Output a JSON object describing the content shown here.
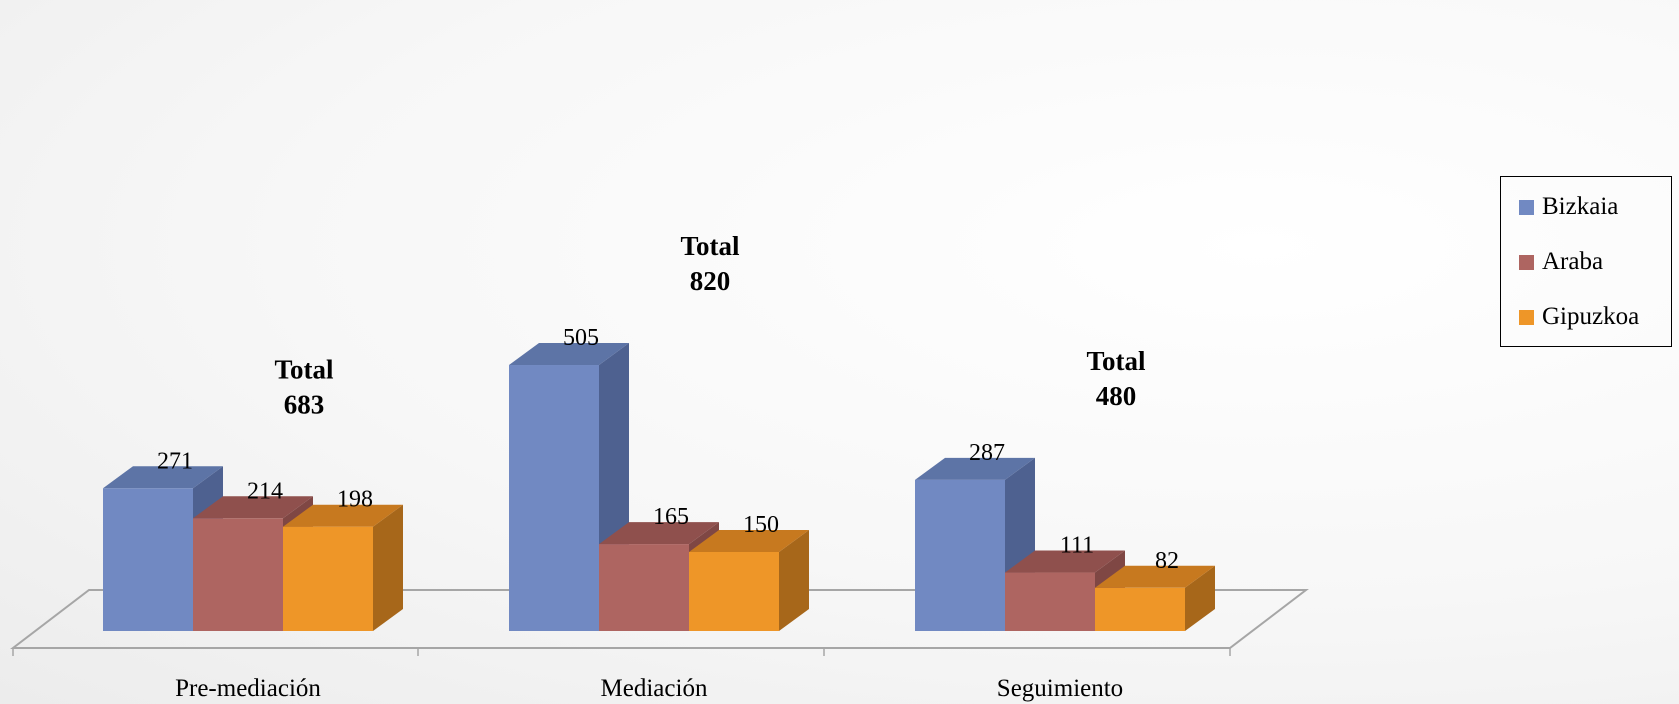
{
  "chart_data": {
    "type": "bar",
    "categories": [
      "Pre-mediación",
      "Mediación",
      "Seguimiento"
    ],
    "series": [
      {
        "name": "Bizkaia",
        "values": [
          271,
          505,
          287
        ],
        "color": "#7189C2",
        "side_color": "#4E6190",
        "top_color": "#5D74A6"
      },
      {
        "name": "Araba",
        "values": [
          214,
          165,
          111
        ],
        "color": "#AE6561",
        "side_color": "#7F4744",
        "top_color": "#8F504D"
      },
      {
        "name": "Gipuzkoa",
        "values": [
          198,
          150,
          82
        ],
        "color": "#EE9628",
        "side_color": "#A7671A",
        "top_color": "#C7791F"
      }
    ],
    "totals": [
      {
        "label": "Total",
        "value": "683"
      },
      {
        "label": "Total",
        "value": "820"
      },
      {
        "label": "Total",
        "value": "480"
      }
    ],
    "ylim": [
      0,
      505
    ],
    "three_d": true,
    "grid": false,
    "legend_position": "right"
  }
}
